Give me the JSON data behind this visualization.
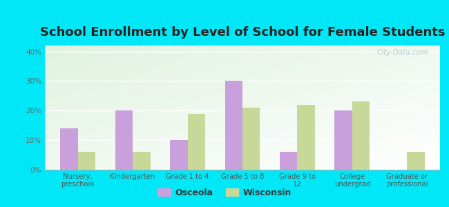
{
  "title": "School Enrollment by Level of School for Female Students",
  "categories": [
    "Nursery,\npreschool",
    "Kindergarten",
    "Grade 1 to 4",
    "Grade 5 to 8",
    "Grade 9 to\n12",
    "College\nundergrad",
    "Graduate or\nprofessional"
  ],
  "osceola_values": [
    14,
    20,
    10,
    30,
    6,
    20,
    0
  ],
  "wisconsin_values": [
    6,
    6,
    19,
    21,
    22,
    23,
    6
  ],
  "osceola_color": "#c9a0dc",
  "wisconsin_color": "#c8d898",
  "background_outer": "#00e8f8",
  "background_inner": "#e8f5e0",
  "ylim": [
    0,
    42
  ],
  "yticks": [
    0,
    10,
    20,
    30,
    40
  ],
  "ytick_labels": [
    "0%",
    "10%",
    "20%",
    "30%",
    "40%"
  ],
  "title_fontsize": 13,
  "legend_osceola": "Osceola",
  "legend_wisconsin": "Wisconsin",
  "bar_width": 0.32,
  "watermark": "City-Data.com"
}
